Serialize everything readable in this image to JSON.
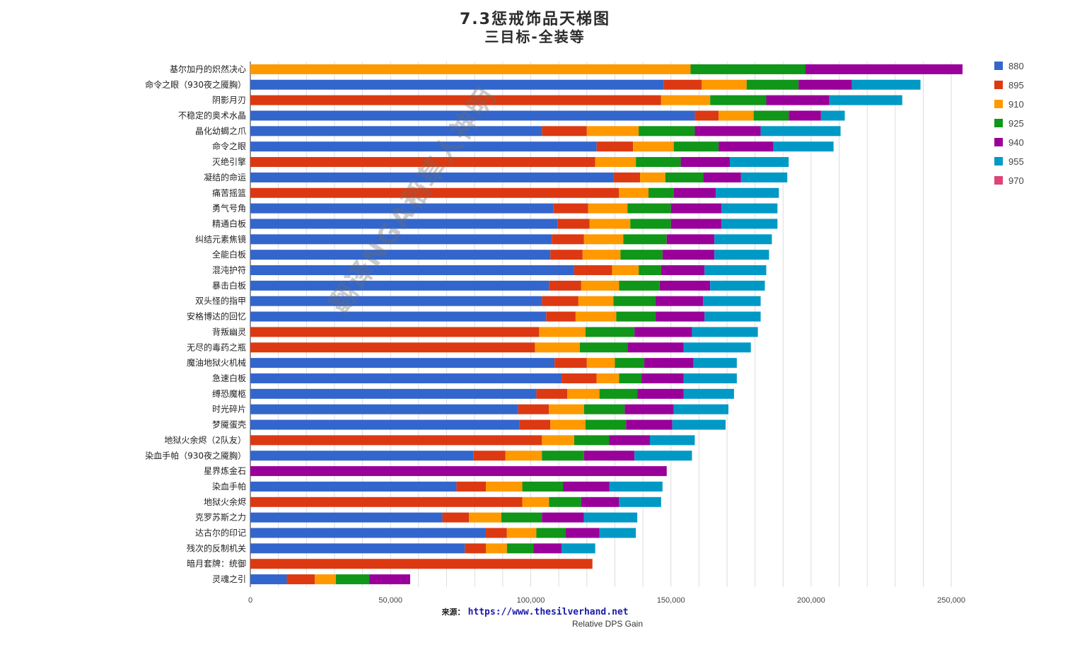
{
  "page": {
    "title_line1": "7.3惩戒饰品天梯图",
    "title_line2": "三目标-全装等",
    "source_label": "来源：",
    "source_url": "https://www.thesilverhand.net",
    "watermark": "翻译NGA稻草人神明"
  },
  "chart_data": {
    "type": "bar",
    "orientation": "horizontal",
    "stacked": true,
    "xlabel": "Relative DPS Gain",
    "ylabel": "",
    "xlim": [
      0,
      260000
    ],
    "xticks": [
      0,
      50000,
      100000,
      150000,
      200000,
      250000
    ],
    "xtick_labels": [
      "0",
      "50,000",
      "100,000",
      "150,000",
      "200,000",
      "250,000"
    ],
    "grid": true,
    "legend_position": "right",
    "levels": [
      "880",
      "895",
      "910",
      "925",
      "940",
      "955",
      "970"
    ],
    "colors": [
      "#3366cc",
      "#dc3912",
      "#ff9900",
      "#109618",
      "#990099",
      "#0099c6",
      "#dd4477"
    ],
    "rows": [
      {
        "name": "基尔加丹的炽然决心",
        "start": 2,
        "values": [
          157000,
          198000,
          254000
        ]
      },
      {
        "name": "命令之眼（930夜之魇胸）",
        "start": 0,
        "values": [
          147500,
          161000,
          177000,
          195500,
          214500,
          239000
        ]
      },
      {
        "name": "阴影月刃",
        "start": 1,
        "values": [
          146500,
          164000,
          184000,
          206500,
          232500
        ]
      },
      {
        "name": "不稳定的奥术水晶",
        "start": 0,
        "values": [
          158500,
          167000,
          179500,
          192000,
          203500,
          212000
        ]
      },
      {
        "name": "晶化幼蝎之爪",
        "start": 0,
        "values": [
          104000,
          120000,
          138500,
          158500,
          182000,
          210500
        ]
      },
      {
        "name": "命令之眼",
        "start": 0,
        "values": [
          123500,
          136500,
          151000,
          167000,
          186500,
          208000
        ]
      },
      {
        "name": "灭绝引擎",
        "start": 1,
        "values": [
          123000,
          137500,
          153500,
          171000,
          192000
        ]
      },
      {
        "name": "凝结的命运",
        "start": 0,
        "values": [
          129500,
          139000,
          148000,
          161500,
          175000,
          191500
        ]
      },
      {
        "name": "痛苦摇篮",
        "start": 1,
        "values": [
          131500,
          142000,
          151000,
          166000,
          188500
        ]
      },
      {
        "name": "勇气号角",
        "start": 0,
        "values": [
          108000,
          120500,
          134500,
          150000,
          168000,
          188000
        ]
      },
      {
        "name": "精通白板",
        "start": 0,
        "values": [
          109500,
          121000,
          135500,
          150000,
          168000,
          188000
        ]
      },
      {
        "name": "纠结元素焦镜",
        "start": 0,
        "values": [
          107500,
          119000,
          133000,
          148500,
          165500,
          186000
        ]
      },
      {
        "name": "全能白板",
        "start": 0,
        "values": [
          107000,
          118500,
          132000,
          147000,
          165500,
          185000
        ]
      },
      {
        "name": "混沌护符",
        "start": 0,
        "values": [
          115500,
          129000,
          138500,
          146500,
          162000,
          184000
        ]
      },
      {
        "name": "暴击白板",
        "start": 0,
        "values": [
          106500,
          118000,
          131500,
          146000,
          164000,
          183500
        ]
      },
      {
        "name": "双头怪的指甲",
        "start": 0,
        "values": [
          104000,
          117000,
          129500,
          144500,
          161500,
          182000
        ]
      },
      {
        "name": "安格博达的回忆",
        "start": 0,
        "values": [
          105500,
          116000,
          130500,
          144500,
          162000,
          182000
        ]
      },
      {
        "name": "背叛幽灵",
        "start": 1,
        "values": [
          103000,
          119500,
          137000,
          157500,
          181000
        ]
      },
      {
        "name": "无尽的毒药之瓶",
        "start": 1,
        "values": [
          101500,
          117500,
          134500,
          154500,
          178500
        ]
      },
      {
        "name": "魔油地狱火机械",
        "start": 0,
        "values": [
          108500,
          120000,
          130000,
          140500,
          158000,
          173500
        ]
      },
      {
        "name": "急速白板",
        "start": 0,
        "values": [
          111000,
          123500,
          131500,
          139500,
          154500,
          173500
        ]
      },
      {
        "name": "缚恐魔柩",
        "start": 0,
        "values": [
          102000,
          113000,
          124500,
          138000,
          154500,
          172500
        ]
      },
      {
        "name": "时光碎片",
        "start": 0,
        "values": [
          95500,
          106500,
          119000,
          133500,
          151000,
          170500
        ]
      },
      {
        "name": "梦魇蛋壳",
        "start": 0,
        "values": [
          96000,
          107000,
          119500,
          134000,
          150500,
          169500
        ]
      },
      {
        "name": "地狱火余烬（2队友）",
        "start": 1,
        "values": [
          104000,
          115500,
          128000,
          142500,
          158500
        ]
      },
      {
        "name": "染血手帕（930夜之魇胸）",
        "start": 0,
        "values": [
          79500,
          91000,
          104000,
          119000,
          137000,
          157500
        ]
      },
      {
        "name": "星界炼金石",
        "start": 4,
        "values": [
          148500
        ]
      },
      {
        "name": "染血手帕",
        "start": 0,
        "values": [
          73500,
          84000,
          97000,
          111500,
          128000,
          147000
        ]
      },
      {
        "name": "地狱火余烬",
        "start": 1,
        "values": [
          97000,
          106500,
          118000,
          131500,
          146500
        ]
      },
      {
        "name": "克罗苏斯之力",
        "start": 0,
        "values": [
          68500,
          78000,
          89500,
          104000,
          119000,
          138000
        ]
      },
      {
        "name": "达古尔的印记",
        "start": 0,
        "values": [
          84000,
          91500,
          102000,
          112500,
          124500,
          137500
        ]
      },
      {
        "name": "残次的反制机关",
        "start": 0,
        "values": [
          76500,
          84000,
          91500,
          101000,
          111000,
          123000
        ]
      },
      {
        "name": "暗月套牌：统御",
        "start": 1,
        "values": [
          122000
        ]
      },
      {
        "name": "灵魂之引",
        "start": 0,
        "values": [
          13000,
          23000,
          30500,
          42500,
          57000
        ]
      }
    ]
  }
}
